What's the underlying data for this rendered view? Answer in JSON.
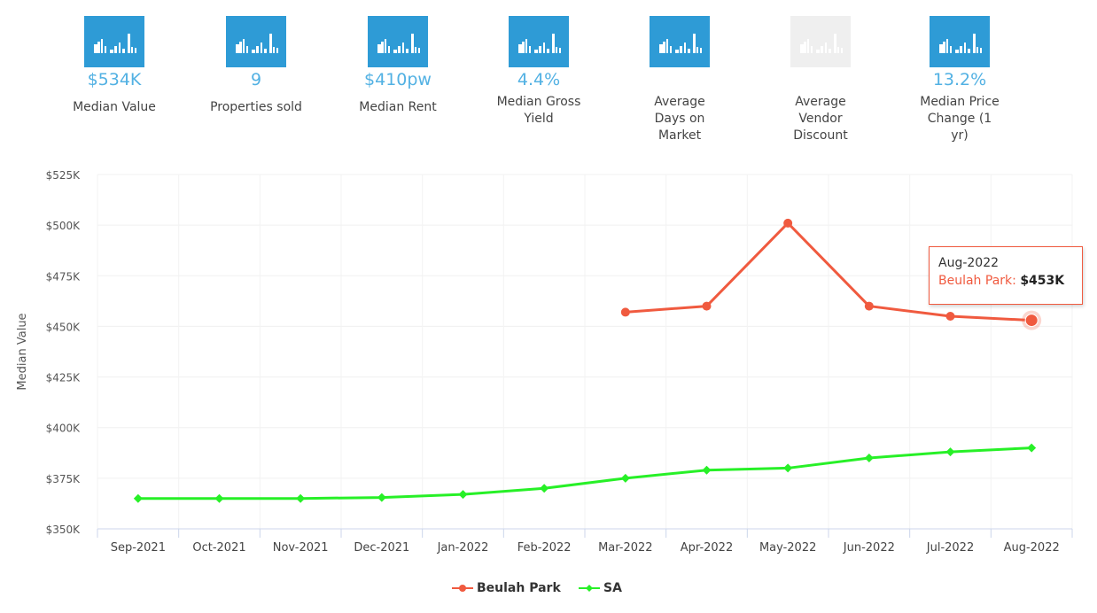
{
  "stats": [
    {
      "value": "$534K",
      "label": "Median Value",
      "disabled": false
    },
    {
      "value": "9",
      "label": "Properties sold",
      "disabled": false
    },
    {
      "value": "$410pw",
      "label": "Median Rent",
      "disabled": false
    },
    {
      "value": "4.4%",
      "label": "Median Gross Yield",
      "disabled": false
    },
    {
      "value": "",
      "label": "Average Days on Market",
      "disabled": false
    },
    {
      "value": "",
      "label": "Average Vendor Discount",
      "disabled": true
    },
    {
      "value": "13.2%",
      "label": "Median Price Change (1 yr)",
      "disabled": false
    }
  ],
  "icon_name": "bar-chart-icon",
  "colors": {
    "accent": "#2e9bd6",
    "value_text": "#52b1e3",
    "beulah": "#f05a3f",
    "sa": "#27f027",
    "disabled": "#efefef"
  },
  "chart_data": {
    "type": "line",
    "ylabel": "Median Value",
    "xlabel": "",
    "categories": [
      "Sep-2021",
      "Oct-2021",
      "Nov-2021",
      "Dec-2021",
      "Jan-2022",
      "Feb-2022",
      "Mar-2022",
      "Apr-2022",
      "May-2022",
      "Jun-2022",
      "Jul-2022",
      "Aug-2022"
    ],
    "ylim": [
      350000,
      525000
    ],
    "yticks": [
      350000,
      375000,
      400000,
      425000,
      450000,
      475000,
      500000,
      525000
    ],
    "ytick_labels": [
      "$350K",
      "$375K",
      "$400K",
      "$425K",
      "$450K",
      "$475K",
      "$500K",
      "$525K"
    ],
    "grid": true,
    "legend": "bottom-center",
    "series": [
      {
        "name": "Beulah Park",
        "color": "#f05a3f",
        "marker": "circle",
        "values": [
          null,
          null,
          null,
          null,
          null,
          null,
          457000,
          460000,
          501000,
          460000,
          455000,
          453000
        ]
      },
      {
        "name": "SA",
        "color": "#27f027",
        "marker": "diamond",
        "values": [
          365000,
          365000,
          365000,
          365500,
          367000,
          370000,
          375000,
          379000,
          380000,
          385000,
          388000,
          390000
        ]
      }
    ],
    "tooltip": {
      "category": "Aug-2022",
      "series": "Beulah Park",
      "separator": ":",
      "value": "$453K"
    }
  }
}
